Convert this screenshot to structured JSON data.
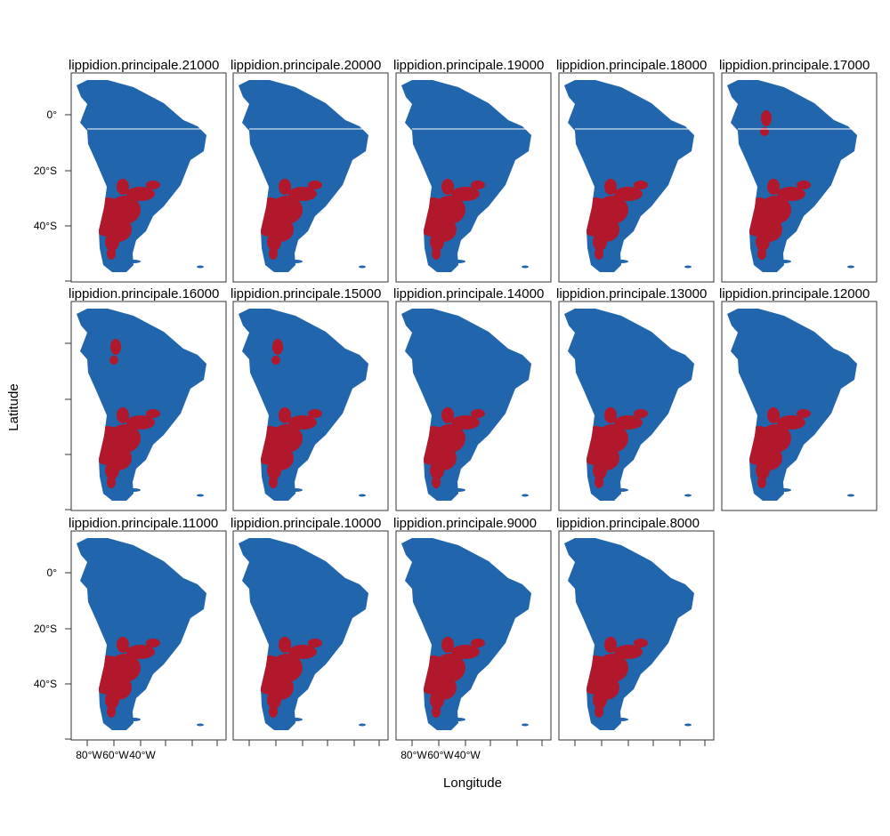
{
  "figure": {
    "xlabel": "Longitude",
    "ylabel": "Latitude",
    "colors": {
      "land": "#2166ac",
      "presence": "#b2182b",
      "frame": "#333333"
    }
  },
  "axes": {
    "x_ticks": [
      "80°W",
      "60°W",
      "40°W"
    ],
    "y_ticks": [
      "0°",
      "20°S",
      "40°S"
    ]
  },
  "panels": [
    {
      "title": "lippidion.principale.21000",
      "presence": "south"
    },
    {
      "title": "lippidion.principale.20000",
      "presence": "south"
    },
    {
      "title": "lippidion.principale.19000",
      "presence": "south"
    },
    {
      "title": "lippidion.principale.18000",
      "presence": "south"
    },
    {
      "title": "lippidion.principale.17000",
      "presence": "south-north"
    },
    {
      "title": "lippidion.principale.16000",
      "presence": "south-north"
    },
    {
      "title": "lippidion.principale.15000",
      "presence": "south-north"
    },
    {
      "title": "lippidion.principale.14000",
      "presence": "south"
    },
    {
      "title": "lippidion.principale.13000",
      "presence": "south"
    },
    {
      "title": "lippidion.principale.12000",
      "presence": "south"
    },
    {
      "title": "lippidion.principale.11000",
      "presence": "south"
    },
    {
      "title": "lippidion.principale.10000",
      "presence": "south"
    },
    {
      "title": "lippidion.principale.9000",
      "presence": "south"
    },
    {
      "title": "lippidion.principale.8000",
      "presence": "south"
    }
  ]
}
